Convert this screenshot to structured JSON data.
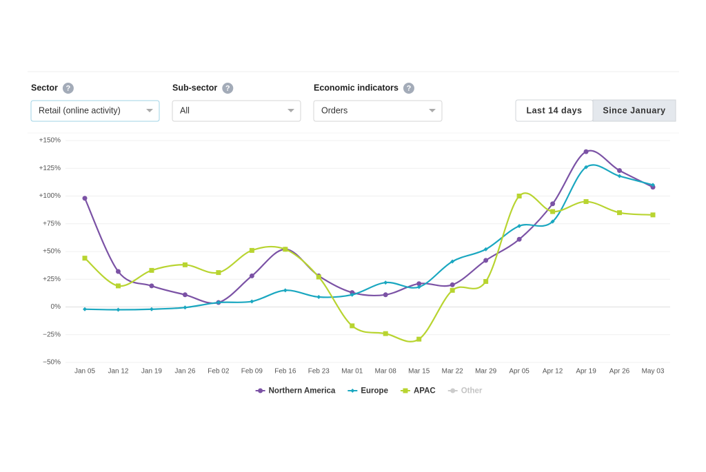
{
  "help_icon": "?",
  "filters": [
    {
      "label": "Sector",
      "value": "Retail (online activity)"
    },
    {
      "label": "Sub-sector",
      "value": "All"
    },
    {
      "label": "Economic indicators",
      "value": "Orders"
    }
  ],
  "range_toggle": {
    "options": [
      "Last 14 days",
      "Since January"
    ],
    "selected": 1
  },
  "chart_data": {
    "type": "line",
    "categories": [
      "Jan 05",
      "Jan 12",
      "Jan 19",
      "Jan 26",
      "Feb 02",
      "Feb 09",
      "Feb 16",
      "Feb 23",
      "Mar 01",
      "Mar 08",
      "Mar 15",
      "Mar 22",
      "Mar 29",
      "Apr 05",
      "Apr 12",
      "Apr 19",
      "Apr 26",
      "May 03"
    ],
    "series": [
      {
        "name": "Northern America",
        "color": "#7b52a5",
        "marker": "circle",
        "values": [
          98,
          32,
          19,
          11,
          4,
          28,
          52,
          28,
          13,
          11,
          21,
          20,
          42,
          61,
          93,
          140,
          123,
          108
        ]
      },
      {
        "name": "Europe",
        "color": "#1aa7c0",
        "marker": "diamond",
        "values": [
          -2,
          -2.5,
          -2,
          -0.5,
          4,
          5,
          15,
          9,
          11,
          22,
          18,
          41,
          52,
          73,
          77,
          126,
          118,
          110
        ]
      },
      {
        "name": "APAC",
        "color": "#b8d430",
        "marker": "square",
        "values": [
          44,
          19,
          33,
          38,
          31,
          51,
          52,
          27,
          -17,
          -24,
          -29,
          15,
          23,
          100,
          86,
          95,
          85,
          83
        ]
      },
      {
        "name": "Other",
        "color": "#c8c8c8",
        "marker": "circle",
        "hidden": true,
        "values": [
          null,
          null,
          null,
          null,
          null,
          null,
          null,
          null,
          null,
          null,
          null,
          null,
          null,
          null,
          null,
          null,
          null,
          null
        ]
      }
    ],
    "ylim": [
      -50,
      150
    ],
    "yticks": [
      {
        "value": -50,
        "label": "−50%"
      },
      {
        "value": -25,
        "label": "−25%"
      },
      {
        "value": 0,
        "label": "0%"
      },
      {
        "value": 25,
        "label": "+25%"
      },
      {
        "value": 50,
        "label": "+50%"
      },
      {
        "value": 75,
        "label": "+75%"
      },
      {
        "value": 100,
        "label": "+100%"
      },
      {
        "value": 125,
        "label": "+125%"
      },
      {
        "value": 150,
        "label": "+150%"
      }
    ],
    "grid": true,
    "legend": "bottom"
  }
}
